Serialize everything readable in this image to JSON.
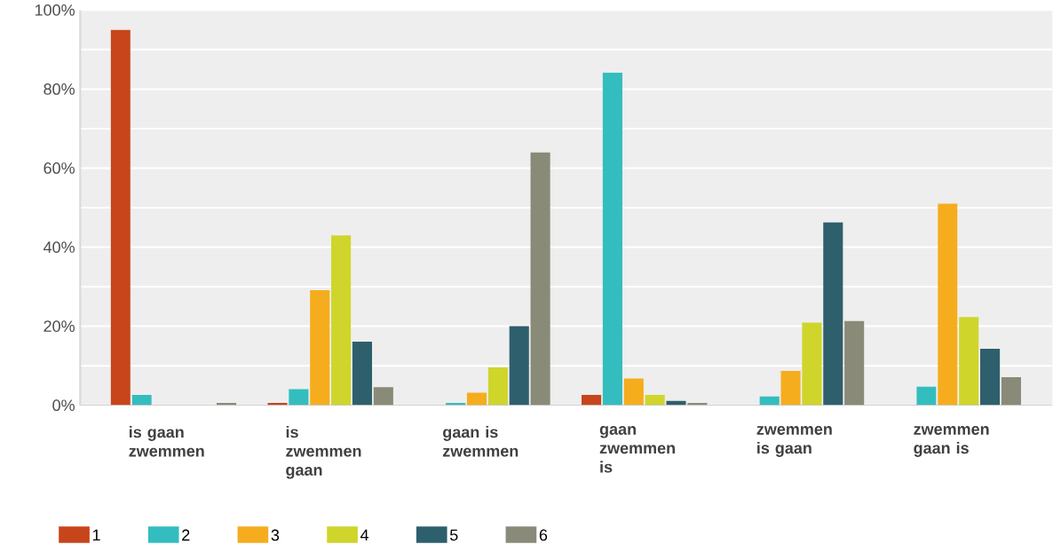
{
  "chart_data": {
    "type": "bar",
    "categories": [
      "is gaan zwemmen",
      "is zwemmen gaan",
      "gaan is zwemmen",
      "gaan zwemmen is",
      "zwemmen is gaan",
      "zwemmen gaan is"
    ],
    "series": [
      {
        "name": "1",
        "color": "#c8441b",
        "values": [
          95,
          0.6,
          0,
          2.6,
          0,
          0
        ]
      },
      {
        "name": "2",
        "color": "#33bdbf",
        "values": [
          2.6,
          4.1,
          0.6,
          84.2,
          2.2,
          4.7
        ]
      },
      {
        "name": "3",
        "color": "#f5ad1e",
        "values": [
          0,
          29.1,
          3.2,
          6.8,
          8.7,
          51
        ]
      },
      {
        "name": "4",
        "color": "#cfd52a",
        "values": [
          0,
          43,
          9.6,
          2.6,
          20.9,
          22.3
        ]
      },
      {
        "name": "5",
        "color": "#2e5f6d",
        "values": [
          0,
          16.1,
          20,
          1.1,
          46.3,
          14.3
        ]
      },
      {
        "name": "6",
        "color": "#8a8a78",
        "values": [
          0.6,
          4.6,
          64,
          0.6,
          21.3,
          7.1
        ]
      }
    ],
    "ylim": [
      0,
      100
    ],
    "yticks": [
      {
        "value": 0,
        "label": "0%"
      },
      {
        "value": 10,
        "label": null
      },
      {
        "value": 20,
        "label": "20%"
      },
      {
        "value": 30,
        "label": null
      },
      {
        "value": 40,
        "label": "40%"
      },
      {
        "value": 50,
        "label": null
      },
      {
        "value": 60,
        "label": "60%"
      },
      {
        "value": 70,
        "label": null
      },
      {
        "value": 80,
        "label": "80%"
      },
      {
        "value": 90,
        "label": null
      },
      {
        "value": 100,
        "label": "100%"
      }
    ],
    "grid": "y",
    "legend": "bottom left"
  }
}
